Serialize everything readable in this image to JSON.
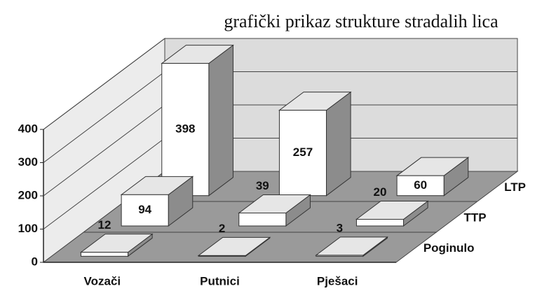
{
  "chart_data": {
    "type": "bar3d",
    "title": "grafički  prikaz strukture stradalih lica",
    "categories": [
      "Vozači",
      "Putnici",
      "Pješaci"
    ],
    "series": [
      {
        "name": "Poginulo",
        "color": "#ffffff",
        "values": [
          12,
          2,
          3
        ]
      },
      {
        "name": "TTP",
        "color": "#ffffff",
        "values": [
          94,
          39,
          20
        ]
      },
      {
        "name": "LTP",
        "color": "#ffffff",
        "values": [
          398,
          257,
          60
        ]
      }
    ],
    "ylim": [
      0,
      400
    ],
    "yticks": [
      0,
      100,
      200,
      300,
      400
    ],
    "grid": true
  }
}
